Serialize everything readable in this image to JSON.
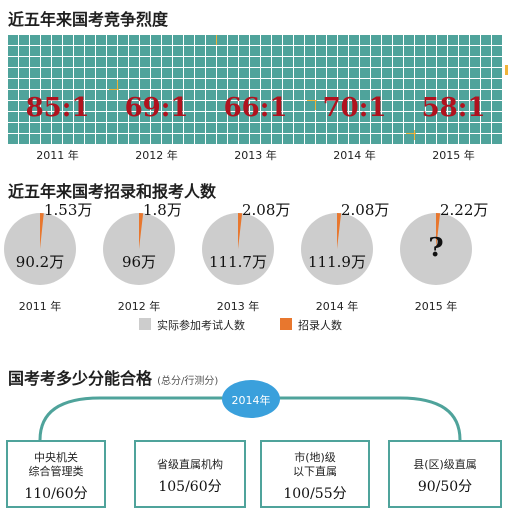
{
  "section1": {
    "title": "近五年来国考竞争烈度",
    "years": [
      {
        "year": "2011 年",
        "ratio": "85:1"
      },
      {
        "year": "2012 年",
        "ratio": "69:1"
      },
      {
        "year": "2013 年",
        "ratio": "66:1"
      },
      {
        "year": "2014 年",
        "ratio": "70:1"
      },
      {
        "year": "2015 年",
        "ratio": "58:1"
      }
    ]
  },
  "section2": {
    "title": "近五年来国考招录和报考人数",
    "pies": [
      {
        "year": "2011 年",
        "recruit_label": "1.53万",
        "applicants_label": "90.2万"
      },
      {
        "year": "2012 年",
        "recruit_label": "1.8万",
        "applicants_label": "96万"
      },
      {
        "year": "2013 年",
        "recruit_label": "2.08万",
        "applicants_label": "111.7万"
      },
      {
        "year": "2014 年",
        "recruit_label": "2.08万",
        "applicants_label": "111.9万"
      },
      {
        "year": "2015 年",
        "recruit_label": "2.22万",
        "applicants_label": "?"
      }
    ],
    "legend": {
      "applicants": "实际参加考试人数",
      "recruits": "招录人数"
    }
  },
  "section3": {
    "title": "国考考多少分能合格",
    "subtitle": "(总分/行测分)",
    "year_badge": "2014年",
    "boxes": [
      {
        "label_lines": [
          "中央机关",
          "综合管理类"
        ],
        "score": "110/60分"
      },
      {
        "label_lines": [
          "省级直属机构"
        ],
        "score": "105/60分"
      },
      {
        "label_lines": [
          "市(地)级",
          "以下直属"
        ],
        "score": "100/55分"
      },
      {
        "label_lines": [
          "县(区)级直属"
        ],
        "score": "90/50分"
      }
    ]
  },
  "colors": {
    "teal": "#4fa39b",
    "orange": "#f0b43c",
    "pie_gray": "#cdcdcd",
    "recruit_orange": "#e8772e",
    "ratio_red": "#b0121e",
    "badge_blue": "#3aa0dc"
  },
  "chart_data": [
    {
      "type": "bar",
      "title": "近五年来国考竞争烈度",
      "categories": [
        "2011",
        "2012",
        "2013",
        "2014",
        "2015"
      ],
      "series": [
        {
          "values": [
            85,
            69,
            66,
            70,
            58
          ]
        }
      ]
    },
    {
      "type": "pie",
      "title": "近五年来国考招录和报考人数",
      "categories": [
        "2011",
        "2012",
        "2013",
        "2014",
        "2015"
      ],
      "series": [
        {
          "name": "实际参加考试人数",
          "values": [
            90.2,
            96,
            111.7,
            111.9,
            null
          ]
        },
        {
          "name": "招录人数",
          "values": [
            1.53,
            1.8,
            2.08,
            2.08,
            2.22
          ]
        }
      ]
    }
  ]
}
